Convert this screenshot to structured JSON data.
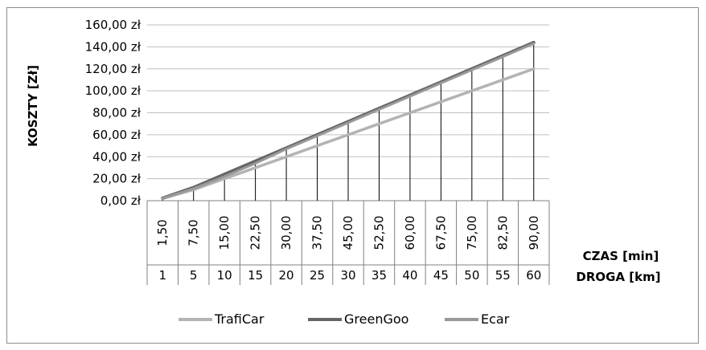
{
  "chart_data": {
    "type": "line",
    "title": "",
    "ylabel": "KOSZTY [Zł]",
    "xlabel_time": "CZAS [min]",
    "xlabel_distance": "DROGA [km]",
    "ylim": [
      0,
      160
    ],
    "y_ticks": [
      "0,00 zł",
      "20,00 zł",
      "40,00 zł",
      "60,00 zł",
      "80,00 zł",
      "100,00 zł",
      "120,00 zł",
      "140,00 zł",
      "160,00 zł"
    ],
    "categories_time": [
      "1,50",
      "7,50",
      "15,00",
      "22,50",
      "30,00",
      "37,50",
      "45,00",
      "52,50",
      "60,00",
      "67,50",
      "75,00",
      "82,50",
      "90,00"
    ],
    "categories_distance": [
      "1",
      "5",
      "10",
      "15",
      "20",
      "25",
      "30",
      "35",
      "40",
      "45",
      "50",
      "55",
      "60"
    ],
    "grid": true,
    "drop_lines": true,
    "legend_position": "bottom",
    "series": [
      {
        "name": "TrafiCar",
        "color": "#b3b3b3",
        "values": [
          2,
          10,
          20,
          30,
          40,
          50,
          60,
          70,
          80,
          90,
          100,
          110,
          120
        ]
      },
      {
        "name": "GreenGoo",
        "color": "#666666",
        "values": [
          2.4,
          12,
          24,
          36,
          48,
          60,
          72,
          84,
          96,
          108,
          120,
          132,
          144
        ]
      },
      {
        "name": "Ecar",
        "color": "#999999",
        "values": [
          2.2,
          11,
          22,
          34,
          47,
          59,
          71,
          83,
          95,
          107,
          119,
          131,
          143
        ]
      }
    ]
  }
}
